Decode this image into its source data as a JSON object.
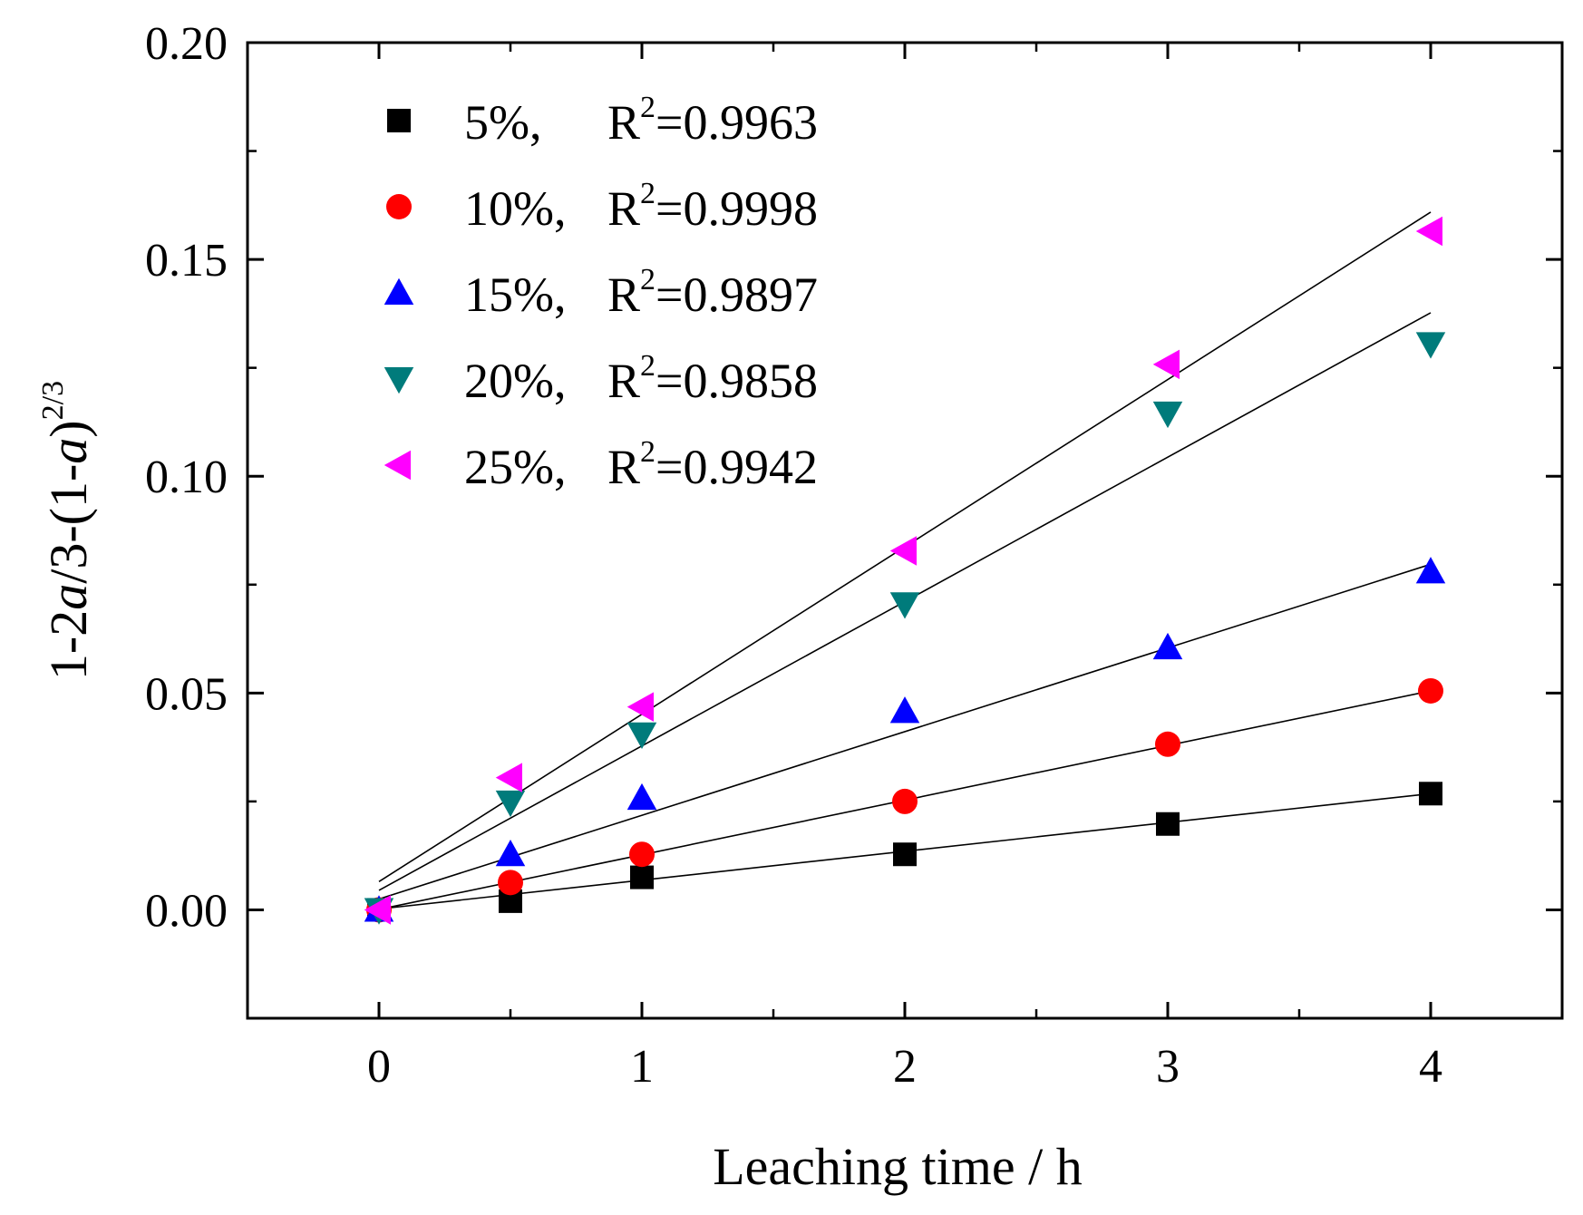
{
  "chart_data": {
    "type": "scatter",
    "title": "",
    "xlabel": "Leaching time / h",
    "ylabel": {
      "prefix": "1-2",
      "var1": "a",
      "mid": "/3-(1-",
      "var2": "a",
      "suffix": ")",
      "exponent": "2/3"
    },
    "xlim": [
      -0.5,
      4.5
    ],
    "ylim": [
      -0.025,
      0.2
    ],
    "x_ticks": [
      0,
      1,
      2,
      3,
      4
    ],
    "x_tick_labels": [
      "0",
      "1",
      "2",
      "3",
      "4"
    ],
    "y_ticks": [
      0.0,
      0.05,
      0.1,
      0.15,
      0.2
    ],
    "y_tick_labels": [
      "0.00",
      "0.05",
      "0.10",
      "0.15",
      "0.20"
    ],
    "grid": false,
    "legend_position": "top-left",
    "x": [
      0,
      0.5,
      1,
      2,
      3,
      4
    ],
    "series": [
      {
        "name": "5%",
        "legend_prefix": "5%,",
        "r2_label": "R",
        "r2_exp": "2",
        "r2_value": "=0.9963",
        "marker": "square",
        "color": "#000000",
        "values": [
          0.0,
          0.002,
          0.0075,
          0.0128,
          0.0198,
          0.0268
        ],
        "fit": {
          "slope": 0.00665,
          "intercept": 0.0002
        }
      },
      {
        "name": "10%",
        "legend_prefix": "10%,",
        "r2_label": "R",
        "r2_exp": "2",
        "r2_value": "=0.9998",
        "marker": "circle",
        "color": "#ff0000",
        "values": [
          0.0,
          0.0063,
          0.0128,
          0.025,
          0.0382,
          0.0505
        ],
        "fit": {
          "slope": 0.0126,
          "intercept": 0.0001
        }
      },
      {
        "name": "15%",
        "legend_prefix": "15%,",
        "r2_label": "R",
        "r2_exp": "2",
        "r2_value": "=0.9897",
        "marker": "triangle-up",
        "color": "#0000ff",
        "values": [
          0.0,
          0.0128,
          0.0258,
          0.0458,
          0.0605,
          0.078
        ],
        "fit": {
          "slope": 0.0193,
          "intercept": 0.0025
        }
      },
      {
        "name": "20%",
        "legend_prefix": "20%,",
        "r2_label": "R",
        "r2_exp": "2",
        "r2_value": "=0.9858",
        "marker": "triangle-down",
        "color": "#007b7b",
        "values": [
          0.0,
          0.0248,
          0.0405,
          0.0705,
          0.1145,
          0.1305
        ],
        "fit": {
          "slope": 0.0333,
          "intercept": 0.0045
        }
      },
      {
        "name": "25%",
        "legend_prefix": "25%,",
        "r2_label": "R",
        "r2_exp": "2",
        "r2_value": "=0.9942",
        "marker": "triangle-left",
        "color": "#ff00ff",
        "values": [
          0.0,
          0.0305,
          0.0468,
          0.0828,
          0.1258,
          0.1565
        ],
        "fit": {
          "slope": 0.0386,
          "intercept": 0.0065
        }
      }
    ]
  }
}
